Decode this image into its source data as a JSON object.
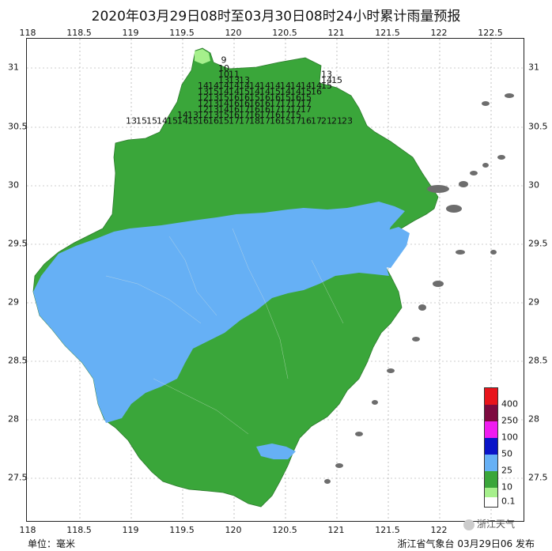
{
  "title": "2020年03月29日08时至03月30日08时24小时累计雨量预报",
  "axes": {
    "lon_ticks": [
      "118",
      "118.5",
      "119",
      "119.5",
      "120",
      "120.5",
      "121",
      "121.5",
      "122",
      "122.5"
    ],
    "lat_ticks": [
      "31",
      "30.5",
      "30",
      "29.5",
      "29",
      "28.5",
      "28",
      "27.5"
    ]
  },
  "legend": {
    "items": [
      {
        "label": "400",
        "color": "#e8141b"
      },
      {
        "label": "250",
        "color": "#7d0a3f"
      },
      {
        "label": "100",
        "color": "#f01cf0"
      },
      {
        "label": "50",
        "color": "#0a14c8"
      },
      {
        "label": "25",
        "color": "#66b0f5"
      },
      {
        "label": "10",
        "color": "#3aa63a"
      },
      {
        "label": "0.1",
        "color": "#a6f08c"
      }
    ]
  },
  "colors": {
    "land_green": "#3aa63a",
    "rain_blue": "#66b0f5",
    "light_green": "#a6f08c",
    "islands": "#6d6d6d"
  },
  "station_values": [
    {
      "lon": 119.9,
      "lat": 31.07,
      "v": "9"
    },
    {
      "lon": 119.9,
      "lat": 31.0,
      "v": "10"
    },
    {
      "lon": 119.9,
      "lat": 30.95,
      "v": "10"
    },
    {
      "lon": 120.0,
      "lat": 30.95,
      "v": "11"
    },
    {
      "lon": 120.9,
      "lat": 30.95,
      "v": "13"
    },
    {
      "lon": 119.9,
      "lat": 30.9,
      "v": "13"
    },
    {
      "lon": 120.0,
      "lat": 30.9,
      "v": "13"
    },
    {
      "lon": 120.1,
      "lat": 30.9,
      "v": "13"
    },
    {
      "lon": 120.9,
      "lat": 30.9,
      "v": "14"
    },
    {
      "lon": 121.0,
      "lat": 30.9,
      "v": "15"
    },
    {
      "lon": 119.7,
      "lat": 30.85,
      "v": "14"
    },
    {
      "lon": 119.8,
      "lat": 30.85,
      "v": "14"
    },
    {
      "lon": 119.9,
      "lat": 30.85,
      "v": "14"
    },
    {
      "lon": 120.0,
      "lat": 30.85,
      "v": "14"
    },
    {
      "lon": 120.1,
      "lat": 30.85,
      "v": "14"
    },
    {
      "lon": 120.2,
      "lat": 30.85,
      "v": "14"
    },
    {
      "lon": 120.3,
      "lat": 30.85,
      "v": "14"
    },
    {
      "lon": 120.4,
      "lat": 30.85,
      "v": "14"
    },
    {
      "lon": 120.5,
      "lat": 30.85,
      "v": "14"
    },
    {
      "lon": 120.6,
      "lat": 30.85,
      "v": "14"
    },
    {
      "lon": 120.7,
      "lat": 30.85,
      "v": "14"
    },
    {
      "lon": 120.8,
      "lat": 30.85,
      "v": "14"
    },
    {
      "lon": 120.9,
      "lat": 30.85,
      "v": "15"
    },
    {
      "lon": 119.7,
      "lat": 30.8,
      "v": "13"
    },
    {
      "lon": 119.8,
      "lat": 30.8,
      "v": "15"
    },
    {
      "lon": 119.9,
      "lat": 30.8,
      "v": "14"
    },
    {
      "lon": 120.0,
      "lat": 30.8,
      "v": "14"
    },
    {
      "lon": 120.1,
      "lat": 30.8,
      "v": "15"
    },
    {
      "lon": 120.2,
      "lat": 30.8,
      "v": "14"
    },
    {
      "lon": 120.3,
      "lat": 30.8,
      "v": "14"
    },
    {
      "lon": 120.4,
      "lat": 30.8,
      "v": "15"
    },
    {
      "lon": 120.5,
      "lat": 30.8,
      "v": "14"
    },
    {
      "lon": 120.6,
      "lat": 30.8,
      "v": "14"
    },
    {
      "lon": 120.7,
      "lat": 30.8,
      "v": "15"
    },
    {
      "lon": 120.8,
      "lat": 30.8,
      "v": "16"
    },
    {
      "lon": 119.7,
      "lat": 30.75,
      "v": "12"
    },
    {
      "lon": 119.8,
      "lat": 30.75,
      "v": "13"
    },
    {
      "lon": 119.9,
      "lat": 30.75,
      "v": "15"
    },
    {
      "lon": 120.0,
      "lat": 30.75,
      "v": "16"
    },
    {
      "lon": 120.1,
      "lat": 30.75,
      "v": "16"
    },
    {
      "lon": 120.2,
      "lat": 30.75,
      "v": "15"
    },
    {
      "lon": 120.3,
      "lat": 30.75,
      "v": "16"
    },
    {
      "lon": 120.4,
      "lat": 30.75,
      "v": "16"
    },
    {
      "lon": 120.5,
      "lat": 30.75,
      "v": "15"
    },
    {
      "lon": 120.6,
      "lat": 30.75,
      "v": "16"
    },
    {
      "lon": 120.7,
      "lat": 30.75,
      "v": "15"
    },
    {
      "lon": 119.7,
      "lat": 30.7,
      "v": "12"
    },
    {
      "lon": 119.8,
      "lat": 30.7,
      "v": "13"
    },
    {
      "lon": 119.9,
      "lat": 30.7,
      "v": "14"
    },
    {
      "lon": 120.0,
      "lat": 30.7,
      "v": "16"
    },
    {
      "lon": 120.1,
      "lat": 30.7,
      "v": "16"
    },
    {
      "lon": 120.2,
      "lat": 30.7,
      "v": "16"
    },
    {
      "lon": 120.3,
      "lat": 30.7,
      "v": "16"
    },
    {
      "lon": 120.4,
      "lat": 30.7,
      "v": "17"
    },
    {
      "lon": 120.5,
      "lat": 30.7,
      "v": "17"
    },
    {
      "lon": 120.6,
      "lat": 30.7,
      "v": "17"
    },
    {
      "lon": 120.7,
      "lat": 30.7,
      "v": "17"
    },
    {
      "lon": 119.7,
      "lat": 30.65,
      "v": "12"
    },
    {
      "lon": 119.8,
      "lat": 30.65,
      "v": "13"
    },
    {
      "lon": 119.9,
      "lat": 30.65,
      "v": "14"
    },
    {
      "lon": 120.0,
      "lat": 30.65,
      "v": "16"
    },
    {
      "lon": 120.1,
      "lat": 30.65,
      "v": "17"
    },
    {
      "lon": 120.2,
      "lat": 30.65,
      "v": "16"
    },
    {
      "lon": 120.3,
      "lat": 30.65,
      "v": "16"
    },
    {
      "lon": 120.4,
      "lat": 30.65,
      "v": "17"
    },
    {
      "lon": 120.5,
      "lat": 30.65,
      "v": "17"
    },
    {
      "lon": 120.6,
      "lat": 30.65,
      "v": "17"
    },
    {
      "lon": 120.7,
      "lat": 30.65,
      "v": "17"
    },
    {
      "lon": 119.5,
      "lat": 30.6,
      "v": "14"
    },
    {
      "lon": 119.6,
      "lat": 30.6,
      "v": "13"
    },
    {
      "lon": 119.7,
      "lat": 30.6,
      "v": "12"
    },
    {
      "lon": 119.8,
      "lat": 30.6,
      "v": "13"
    },
    {
      "lon": 119.9,
      "lat": 30.6,
      "v": "15"
    },
    {
      "lon": 120.0,
      "lat": 30.6,
      "v": "16"
    },
    {
      "lon": 120.1,
      "lat": 30.6,
      "v": "17"
    },
    {
      "lon": 120.2,
      "lat": 30.6,
      "v": "16"
    },
    {
      "lon": 120.3,
      "lat": 30.6,
      "v": "17"
    },
    {
      "lon": 120.4,
      "lat": 30.6,
      "v": "16"
    },
    {
      "lon": 120.5,
      "lat": 30.6,
      "v": "17"
    },
    {
      "lon": 120.6,
      "lat": 30.6,
      "v": "15"
    },
    {
      "lon": 119.0,
      "lat": 30.55,
      "v": "13"
    },
    {
      "lon": 119.1,
      "lat": 30.55,
      "v": "15"
    },
    {
      "lon": 119.2,
      "lat": 30.55,
      "v": "15"
    },
    {
      "lon": 119.3,
      "lat": 30.55,
      "v": "14"
    },
    {
      "lon": 119.4,
      "lat": 30.55,
      "v": "15"
    },
    {
      "lon": 119.5,
      "lat": 30.55,
      "v": "14"
    },
    {
      "lon": 119.6,
      "lat": 30.55,
      "v": "15"
    },
    {
      "lon": 119.7,
      "lat": 30.55,
      "v": "16"
    },
    {
      "lon": 119.8,
      "lat": 30.55,
      "v": "16"
    },
    {
      "lon": 119.9,
      "lat": 30.55,
      "v": "15"
    },
    {
      "lon": 120.0,
      "lat": 30.55,
      "v": "17"
    },
    {
      "lon": 120.1,
      "lat": 30.55,
      "v": "17"
    },
    {
      "lon": 120.2,
      "lat": 30.55,
      "v": "18"
    },
    {
      "lon": 120.3,
      "lat": 30.55,
      "v": "17"
    },
    {
      "lon": 120.4,
      "lat": 30.55,
      "v": "16"
    },
    {
      "lon": 120.5,
      "lat": 30.55,
      "v": "15"
    },
    {
      "lon": 120.6,
      "lat": 30.55,
      "v": "17"
    },
    {
      "lon": 120.7,
      "lat": 30.55,
      "v": "16"
    },
    {
      "lon": 120.8,
      "lat": 30.55,
      "v": "17"
    },
    {
      "lon": 120.9,
      "lat": 30.55,
      "v": "21"
    },
    {
      "lon": 121.0,
      "lat": 30.55,
      "v": "21"
    },
    {
      "lon": 121.1,
      "lat": 30.55,
      "v": "23"
    }
  ],
  "footer": {
    "unit": "单位：毫米",
    "issuer": "浙江省气象台 03月29日06 发布"
  },
  "watermark": "浙江天气"
}
